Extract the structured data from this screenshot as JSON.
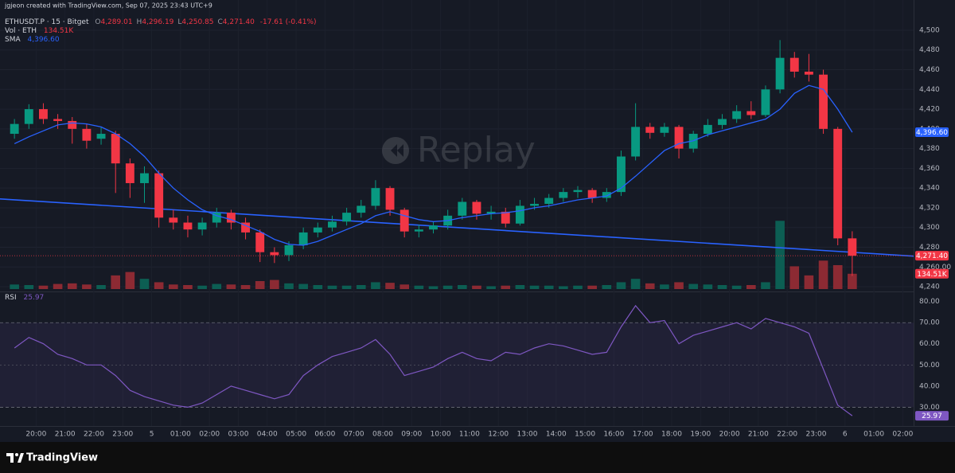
{
  "header": {
    "credit": "jgjeon created with TradingView.com, Sep 07, 2025 23:43 UTC+9",
    "symbol": "ETHUSDT.P · 15 · Bitget",
    "ohlc": [
      [
        "O",
        "4,289.01"
      ],
      [
        "H",
        "4,296.19"
      ],
      [
        "L",
        "4,250.85"
      ],
      [
        "C",
        "4,271.40"
      ]
    ],
    "change": "-17.61 (-0.41%)",
    "volume_title": "Vol · ETH",
    "volume_value": "134.51K",
    "sma_title": "SMA",
    "sma_value": "4,396.60",
    "rsi_title": "RSI",
    "rsi_value": "25.97"
  },
  "watermark": "Replay",
  "footer": "TradingView",
  "chart_data": [
    {
      "type": "candlestick",
      "xlim": [
        -0.5,
        62.75
      ],
      "xticks": [
        {
          "value": 2,
          "label": "20:00"
        },
        {
          "value": 4,
          "label": "21:00"
        },
        {
          "value": 6,
          "label": "22:00"
        },
        {
          "value": 8,
          "label": "23:00"
        },
        {
          "value": 10,
          "label": "5"
        },
        {
          "value": 12,
          "label": "01:00"
        },
        {
          "value": 14,
          "label": "02:00"
        },
        {
          "value": 16,
          "label": "03:00"
        },
        {
          "value": 18,
          "label": "04:00"
        },
        {
          "value": 20,
          "label": "05:00"
        },
        {
          "value": 22,
          "label": "06:00"
        },
        {
          "value": 24,
          "label": "07:00"
        },
        {
          "value": 26,
          "label": "08:00"
        },
        {
          "value": 28,
          "label": "09:00"
        },
        {
          "value": 30,
          "label": "10:00"
        },
        {
          "value": 32,
          "label": "11:00"
        },
        {
          "value": 34,
          "label": "12:00"
        },
        {
          "value": 36,
          "label": "13:00"
        },
        {
          "value": 38,
          "label": "14:00"
        },
        {
          "value": 40,
          "label": "15:00"
        },
        {
          "value": 42,
          "label": "16:00"
        },
        {
          "value": 44,
          "label": "17:00"
        },
        {
          "value": 46,
          "label": "18:00"
        },
        {
          "value": 48,
          "label": "19:00"
        },
        {
          "value": 50,
          "label": "20:00"
        },
        {
          "value": 52,
          "label": "21:00"
        },
        {
          "value": 54,
          "label": "22:00"
        },
        {
          "value": 56,
          "label": "23:00"
        },
        {
          "value": 58,
          "label": "6"
        },
        {
          "value": 60,
          "label": "01:00"
        },
        {
          "value": 62,
          "label": "02:00"
        }
      ],
      "ylim": [
        4236,
        4514.5
      ],
      "yticks": [
        {
          "value": 4500,
          "label": "4,500"
        },
        {
          "value": 4480,
          "label": "4,480"
        },
        {
          "value": 4460,
          "label": "4,460"
        },
        {
          "value": 4440,
          "label": "4,440"
        },
        {
          "value": 4420,
          "label": "4,420"
        },
        {
          "value": 4400,
          "label": "4,400"
        },
        {
          "value": 4380,
          "label": "4,380"
        },
        {
          "value": 4360,
          "label": "4,360"
        },
        {
          "value": 4340,
          "label": "4,340"
        },
        {
          "value": 4320,
          "label": "4,320"
        },
        {
          "value": 4300,
          "label": "4,300"
        },
        {
          "value": 4280,
          "label": "4,280"
        },
        {
          "value": 4260,
          "label": "4,260.00"
        },
        {
          "value": 4240,
          "label": "4,240"
        }
      ],
      "grid": true,
      "up_color": "#089981",
      "down_color": "#f23645",
      "open": [
        4395,
        4405,
        4420,
        4410,
        4408,
        4400,
        4390,
        4395,
        4365,
        4345,
        4355,
        4310,
        4305,
        4298,
        4305,
        4315,
        4305,
        4295,
        4275,
        4272,
        4282,
        4295,
        4300,
        4306,
        4315,
        4322,
        4340,
        4318,
        4296,
        4298,
        4302,
        4312,
        4326,
        4314,
        4316,
        4304,
        4322,
        4324,
        4330,
        4336,
        4338,
        4330,
        4336,
        4372,
        4402,
        4396,
        4402,
        4380,
        4395,
        4404,
        4410,
        4418,
        4414,
        4440,
        4472,
        4458,
        4455,
        4400,
        4289.01
      ],
      "high": [
        4410,
        4425,
        4426,
        4415,
        4412,
        4405,
        4402,
        4398,
        4370,
        4362,
        4358,
        4318,
        4312,
        4310,
        4320,
        4318,
        4310,
        4298,
        4280,
        4286,
        4300,
        4305,
        4312,
        4320,
        4328,
        4348,
        4342,
        4320,
        4303,
        4306,
        4318,
        4330,
        4328,
        4322,
        4320,
        4328,
        4330,
        4334,
        4340,
        4342,
        4340,
        4340,
        4378,
        4426,
        4406,
        4406,
        4404,
        4398,
        4410,
        4415,
        4424,
        4428,
        4444,
        4490,
        4478,
        4476,
        4460,
        4402,
        4296.19
      ],
      "low": [
        4390,
        4400,
        4405,
        4400,
        4385,
        4380,
        4384,
        4335,
        4330,
        4325,
        4300,
        4298,
        4290,
        4292,
        4300,
        4298,
        4288,
        4265,
        4264,
        4266,
        4278,
        4290,
        4296,
        4302,
        4310,
        4318,
        4312,
        4290,
        4290,
        4294,
        4298,
        4308,
        4308,
        4308,
        4300,
        4302,
        4318,
        4320,
        4326,
        4330,
        4325,
        4326,
        4332,
        4368,
        4390,
        4392,
        4370,
        4376,
        4392,
        4400,
        4406,
        4410,
        4412,
        4436,
        4452,
        4448,
        4395,
        4282,
        4250.85
      ],
      "close": [
        4405,
        4420,
        4410,
        4408,
        4400,
        4388,
        4395,
        4365,
        4345,
        4355,
        4310,
        4305,
        4298,
        4305,
        4315,
        4305,
        4295,
        4275,
        4272,
        4282,
        4295,
        4300,
        4306,
        4315,
        4322,
        4340,
        4318,
        4296,
        4298,
        4302,
        4312,
        4326,
        4314,
        4316,
        4304,
        4322,
        4324,
        4330,
        4336,
        4338,
        4330,
        4336,
        4372,
        4402,
        4396,
        4402,
        4380,
        4395,
        4404,
        4410,
        4418,
        4414,
        4440,
        4472,
        4458,
        4455,
        4400,
        4289,
        4271.4
      ],
      "volume": {
        "lim": [
          0,
          700
        ],
        "values": [
          40,
          35,
          30,
          45,
          50,
          40,
          35,
          120,
          150,
          90,
          60,
          40,
          35,
          30,
          45,
          40,
          35,
          70,
          80,
          50,
          45,
          35,
          30,
          30,
          35,
          60,
          55,
          40,
          30,
          25,
          30,
          35,
          30,
          25,
          30,
          35,
          30,
          30,
          25,
          30,
          30,
          35,
          60,
          90,
          50,
          40,
          60,
          45,
          40,
          35,
          30,
          35,
          60,
          600,
          200,
          120,
          250,
          210,
          134.51
        ],
        "up_color": "#0c5e53",
        "down_color": "#8c2a33"
      },
      "sma": {
        "color": "#2962ff",
        "values": [
          4385,
          4392,
          4398,
          4404,
          4406,
          4405,
          4402,
          4395,
          4385,
          4372,
          4355,
          4340,
          4328,
          4318,
          4312,
          4308,
          4302,
          4296,
          4288,
          4283,
          4282,
          4286,
          4292,
          4298,
          4304,
          4312,
          4316,
          4312,
          4308,
          4306,
          4307,
          4310,
          4312,
          4314,
          4315,
          4317,
          4320,
          4322,
          4325,
          4328,
          4330,
          4332,
          4340,
          4352,
          4365,
          4378,
          4385,
          4388,
          4394,
          4398,
          4402,
          4406,
          4410,
          4420,
          4436,
          4444,
          4440,
          4420,
          4396.6
        ]
      },
      "trendline": {
        "color": "#2962ff",
        "x": [
          -0.5,
          62.75
        ],
        "y": [
          4329,
          4271
        ]
      }
    },
    {
      "type": "line",
      "xlim": [
        -0.5,
        62.75
      ],
      "ylim": [
        23,
        84
      ],
      "yticks": [
        {
          "value": 80,
          "label": "80.00"
        },
        {
          "value": 70,
          "label": "70.00"
        },
        {
          "value": 60,
          "label": "60.00"
        },
        {
          "value": 50,
          "label": "50.00"
        },
        {
          "value": 40,
          "label": "40.00"
        },
        {
          "value": 30,
          "label": "30.00"
        }
      ],
      "band": [
        30,
        70
      ],
      "midline": 50,
      "color": "#7e57c2",
      "values": [
        58,
        63,
        60,
        55,
        53,
        50,
        50,
        45,
        38,
        35,
        33,
        31,
        30,
        32,
        36,
        40,
        38,
        36,
        34,
        36,
        45,
        50,
        54,
        56,
        58,
        62,
        55,
        45,
        47,
        49,
        53,
        56,
        53,
        52,
        56,
        55,
        58,
        60,
        59,
        57,
        55,
        56,
        68,
        78,
        70,
        71,
        60,
        64,
        66,
        68,
        70,
        67,
        72,
        70,
        68,
        65,
        48,
        31,
        25.97
      ]
    }
  ]
}
